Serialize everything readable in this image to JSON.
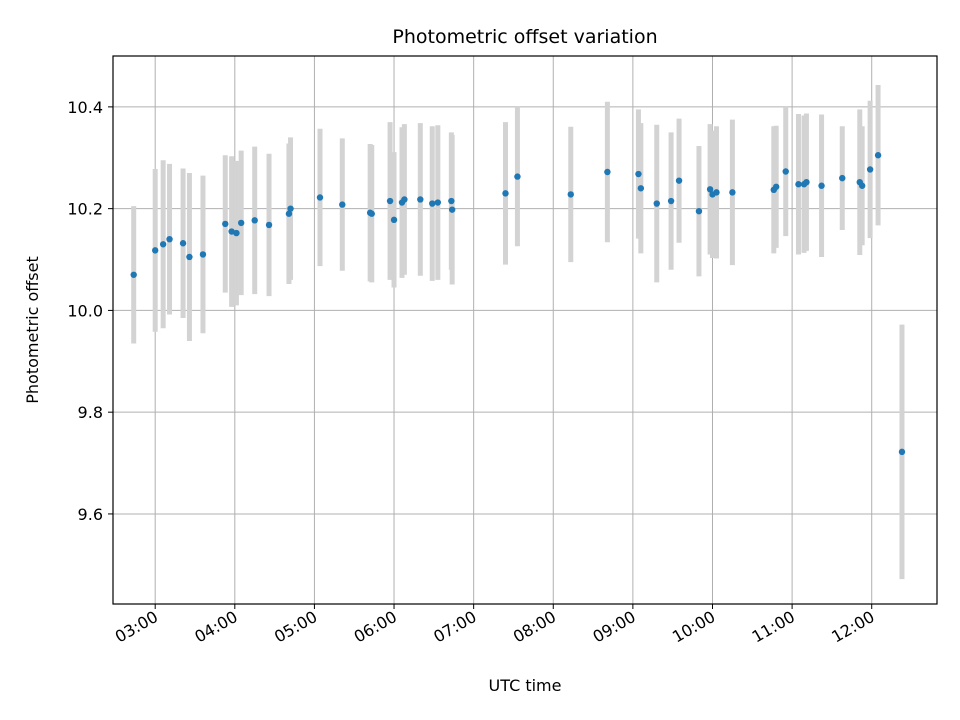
{
  "chart_data": {
    "type": "scatter",
    "title": "Photometric offset variation",
    "xlabel": "UTC time",
    "ylabel": "Photometric offset",
    "grid": true,
    "xlim": [
      2.47,
      12.82
    ],
    "ylim": [
      9.423,
      10.5
    ],
    "x_ticks": [
      3,
      4,
      5,
      6,
      7,
      8,
      9,
      10,
      11,
      12
    ],
    "x_tick_labels": [
      "03:00",
      "04:00",
      "05:00",
      "06:00",
      "07:00",
      "08:00",
      "09:00",
      "10:00",
      "11:00",
      "12:00"
    ],
    "y_ticks": [
      9.6,
      9.8,
      10.0,
      10.2,
      10.4
    ],
    "y_tick_labels": [
      "9.6",
      "9.8",
      "10.0",
      "10.2",
      "10.4"
    ],
    "point_color": "#1f77b4",
    "errorbar_color": "#d3d3d3",
    "series": [
      {
        "name": "Photometric offset",
        "x": [
          2.73,
          3.0,
          3.1,
          3.18,
          3.35,
          3.43,
          3.6,
          3.88,
          3.96,
          4.02,
          4.08,
          4.25,
          4.43,
          4.68,
          4.7,
          5.07,
          5.35,
          5.7,
          5.72,
          5.95,
          6.0,
          6.1,
          6.13,
          6.33,
          6.48,
          6.55,
          6.72,
          6.73,
          7.4,
          7.55,
          8.22,
          8.68,
          9.07,
          9.1,
          9.3,
          9.48,
          9.58,
          9.83,
          9.97,
          10.0,
          10.05,
          10.25,
          10.77,
          10.8,
          10.92,
          11.08,
          11.15,
          11.18,
          11.37,
          11.63,
          11.85,
          11.88,
          11.98,
          12.08,
          12.38
        ],
        "y": [
          10.07,
          10.118,
          10.13,
          10.14,
          10.132,
          10.105,
          10.11,
          10.17,
          10.155,
          10.152,
          10.172,
          10.177,
          10.168,
          10.19,
          10.2,
          10.222,
          10.208,
          10.192,
          10.19,
          10.215,
          10.178,
          10.212,
          10.218,
          10.218,
          10.21,
          10.212,
          10.215,
          10.198,
          10.23,
          10.263,
          10.228,
          10.272,
          10.268,
          10.24,
          10.21,
          10.215,
          10.255,
          10.195,
          10.238,
          10.228,
          10.232,
          10.232,
          10.237,
          10.243,
          10.273,
          10.248,
          10.248,
          10.252,
          10.245,
          10.26,
          10.252,
          10.245,
          10.277,
          10.305,
          9.722
        ],
        "yerr": [
          0.135,
          0.16,
          0.165,
          0.148,
          0.147,
          0.165,
          0.155,
          0.135,
          0.148,
          0.142,
          0.142,
          0.145,
          0.14,
          0.138,
          0.14,
          0.135,
          0.13,
          0.135,
          0.135,
          0.155,
          0.133,
          0.148,
          0.148,
          0.15,
          0.152,
          0.152,
          0.135,
          0.147,
          0.14,
          0.137,
          0.133,
          0.138,
          0.127,
          0.128,
          0.155,
          0.135,
          0.122,
          0.128,
          0.128,
          0.125,
          0.13,
          0.143,
          0.125,
          0.12,
          0.127,
          0.138,
          0.135,
          0.135,
          0.14,
          0.102,
          0.143,
          0.117,
          0.135,
          0.138,
          0.25
        ]
      }
    ]
  }
}
